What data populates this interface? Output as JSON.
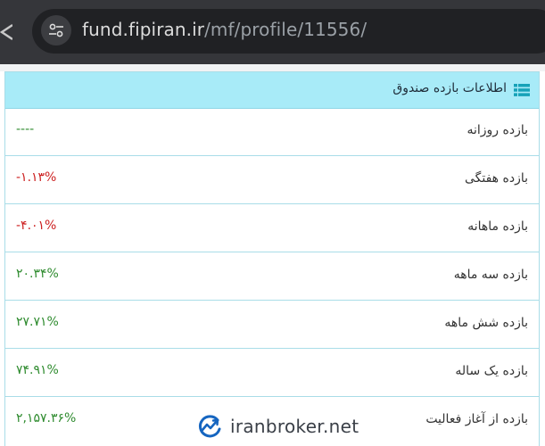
{
  "browser": {
    "url_host": "fund.fipiran.ir",
    "url_path": "/mf/profile/11556/"
  },
  "panel": {
    "title": "اطلاعات بازده صندوق",
    "rows": [
      {
        "label": "بازده روزانه",
        "value": "----",
        "color": "#2e8b2e"
      },
      {
        "label": "بازده هفتگی",
        "value": "-۱.۱۳%",
        "color": "#cc1f1f"
      },
      {
        "label": "بازده ماهانه",
        "value": "-۴.۰۱%",
        "color": "#cc1f1f"
      },
      {
        "label": "بازده سه ماهه",
        "value": "۲۰.۳۴%",
        "color": "#2e8b2e"
      },
      {
        "label": "بازده شش ماهه",
        "value": "۲۷.۷۱%",
        "color": "#2e8b2e"
      },
      {
        "label": "بازده یک ساله",
        "value": "۷۴.۹۱%",
        "color": "#2e8b2e"
      },
      {
        "label": "بازده از آغاز فعالیت",
        "value": "۲,۱۵۷.۳۶%",
        "color": "#2e8b2e"
      }
    ]
  },
  "watermark": {
    "text": "iranbroker.net"
  }
}
